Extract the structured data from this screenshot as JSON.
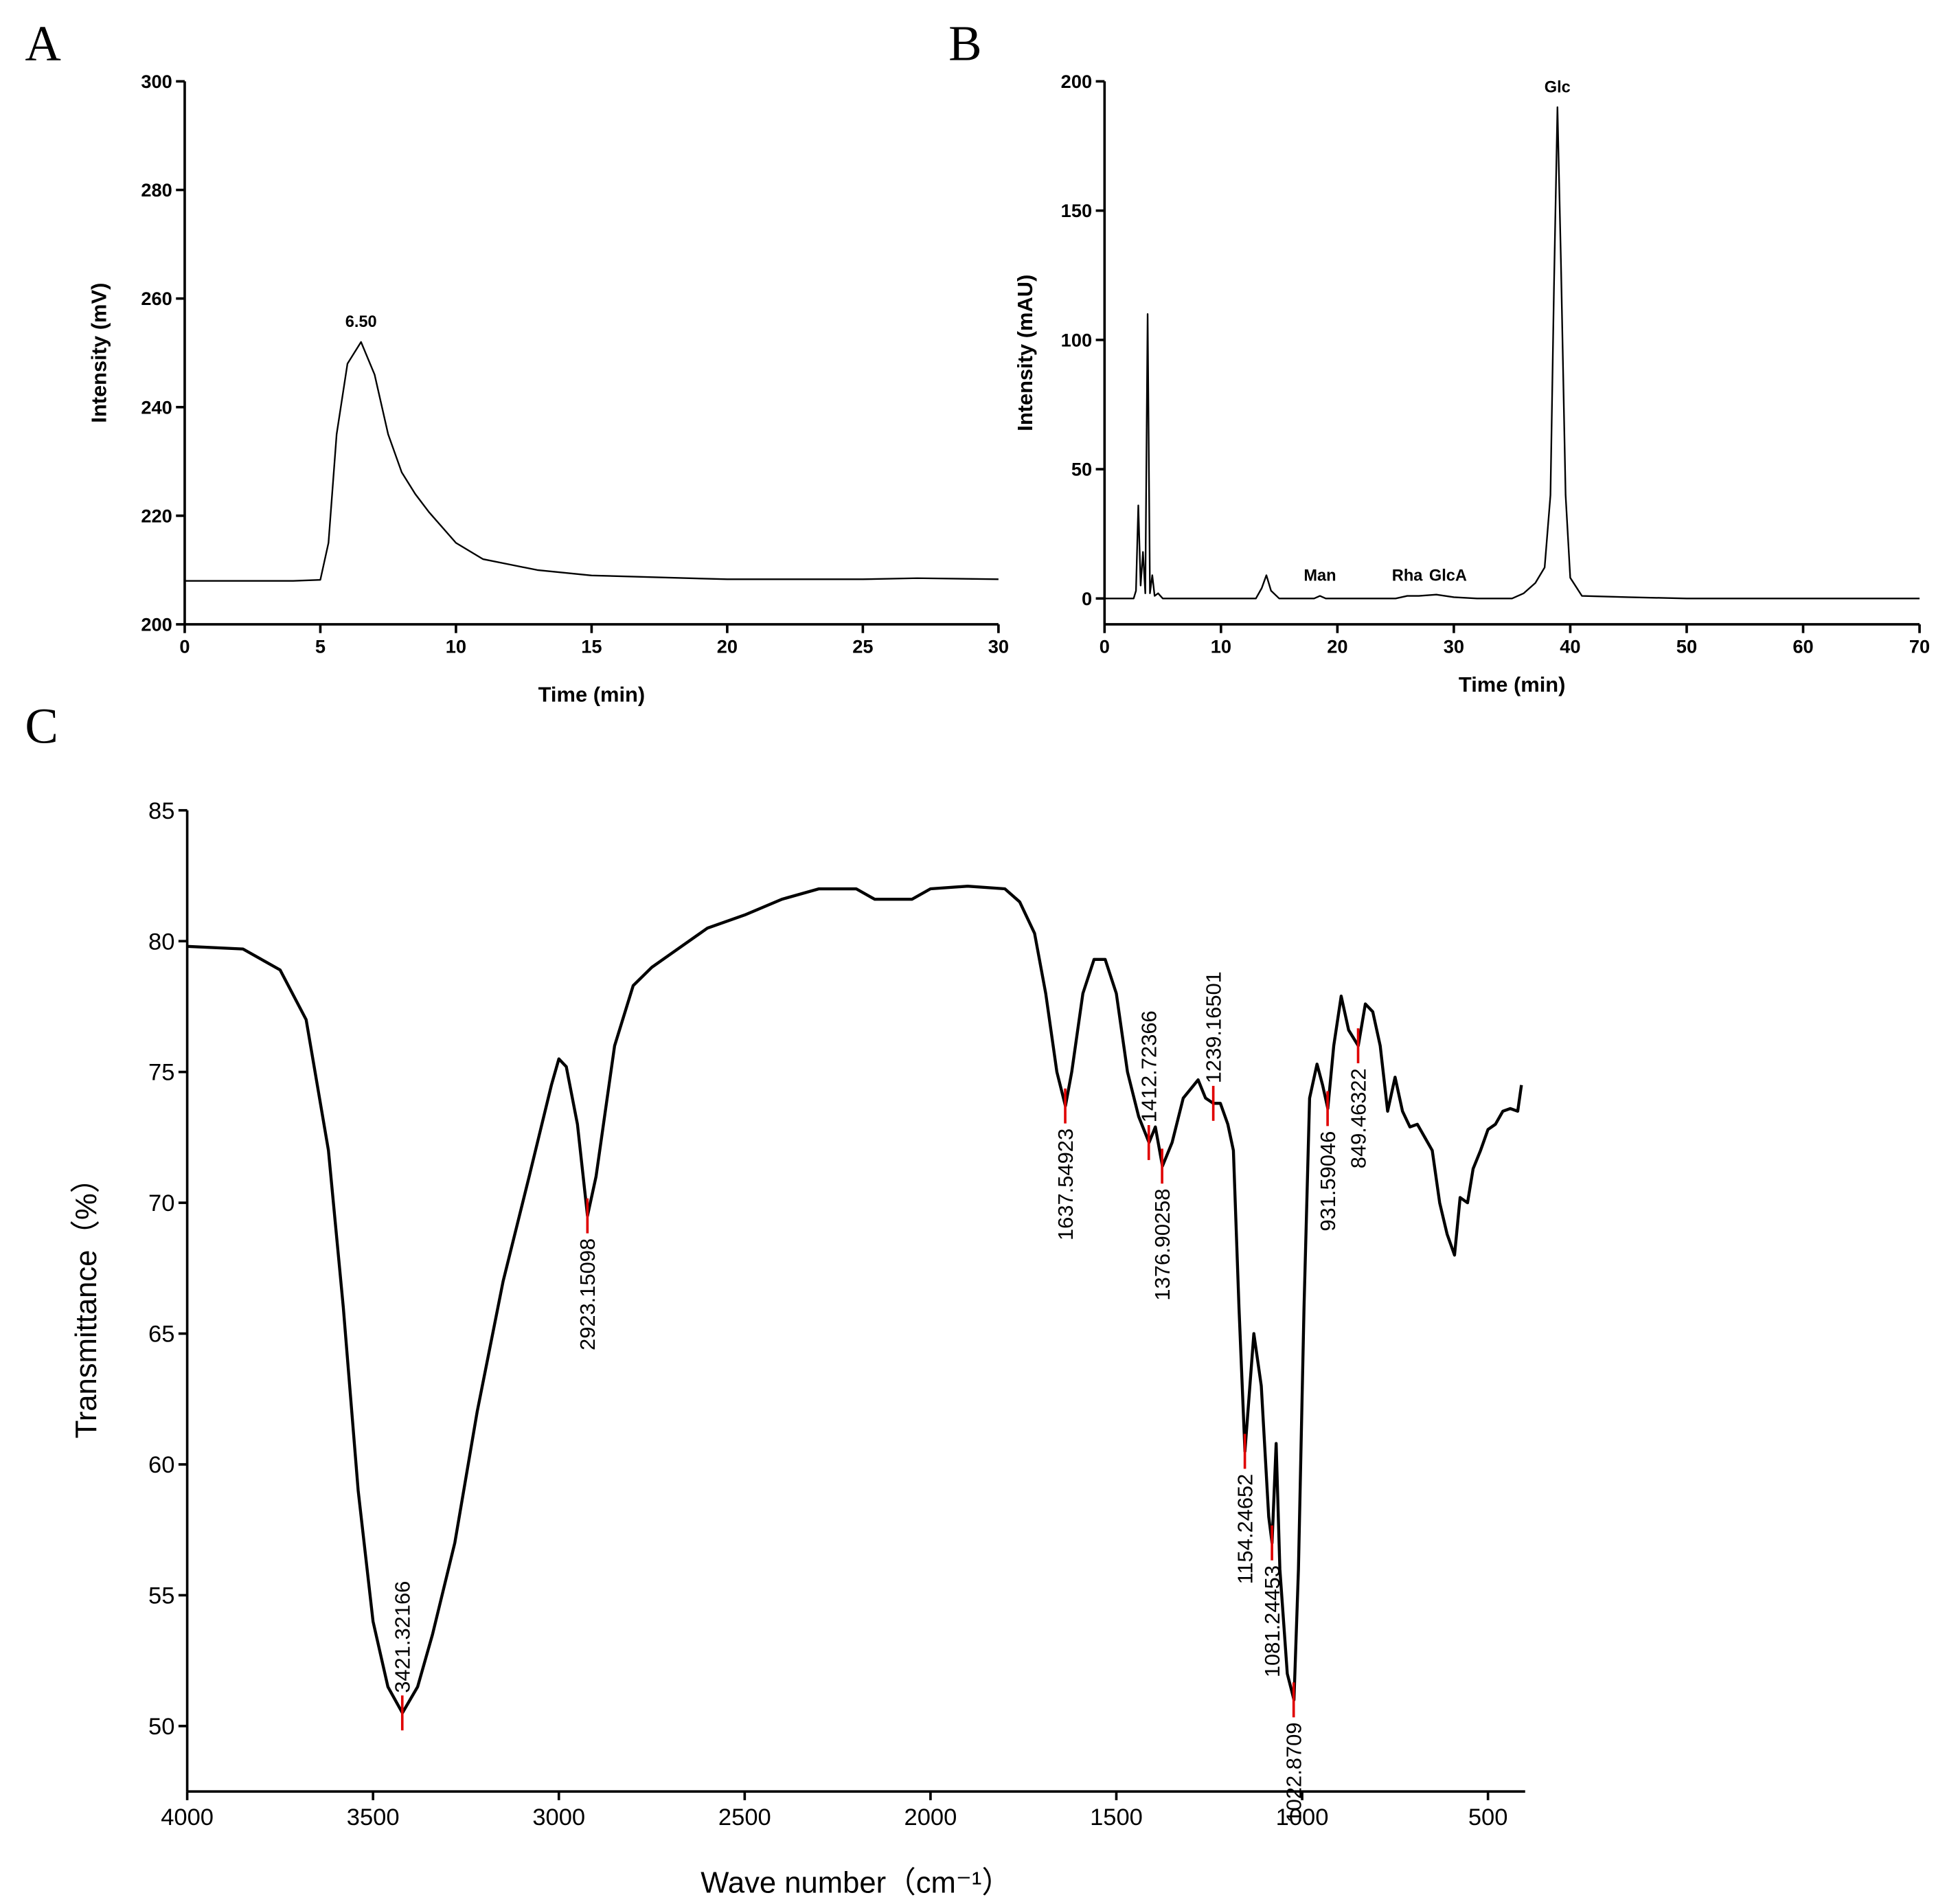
{
  "chart_data": [
    {
      "type": "line",
      "panel": "A",
      "xlabel": "Time (min)",
      "ylabel": "Intensity (mV)",
      "xlim": [
        0,
        30
      ],
      "ylim": [
        200,
        300
      ],
      "xticks": [
        0,
        5,
        10,
        15,
        20,
        25,
        30
      ],
      "yticks": [
        200,
        220,
        240,
        260,
        280,
        300
      ],
      "annotations": [
        {
          "label": "6.50",
          "x": 6.5,
          "y": 252
        }
      ],
      "series": [
        {
          "color": "#000000",
          "x": [
            0,
            2,
            4,
            5,
            5.3,
            5.6,
            6,
            6.5,
            7,
            7.5,
            8,
            8.5,
            9,
            10,
            11,
            12,
            13,
            15,
            20,
            25,
            27,
            30
          ],
          "values": [
            208,
            208,
            208,
            208.2,
            215,
            235,
            248,
            252,
            246,
            235,
            228,
            224,
            220.7,
            215,
            212,
            211,
            210,
            209,
            208.3,
            208.3,
            208.5,
            208.3
          ]
        }
      ]
    },
    {
      "type": "line",
      "panel": "B",
      "xlabel": "Time (min)",
      "ylabel": "Intensity (mAU)",
      "xlim": [
        0,
        70
      ],
      "ylim": [
        -10,
        200
      ],
      "xticks": [
        0,
        10,
        20,
        30,
        40,
        50,
        60,
        70
      ],
      "yticks": [
        0,
        50,
        100,
        150,
        200
      ],
      "annotations": [
        {
          "label": "Man",
          "x": 18.5,
          "y": 1
        },
        {
          "label": "Rha",
          "x": 26,
          "y": 1
        },
        {
          "label": "GlcA",
          "x": 29.5,
          "y": 1
        },
        {
          "label": "Glc",
          "x": 38.9,
          "y": 190
        }
      ],
      "series": [
        {
          "color": "#000000",
          "x": [
            0,
            2.5,
            2.7,
            2.9,
            3.1,
            3.3,
            3.5,
            3.7,
            3.9,
            4.1,
            4.3,
            4.6,
            5,
            13,
            13.5,
            13.9,
            14.3,
            15,
            18,
            18.5,
            19,
            25,
            26,
            27,
            28.5,
            30,
            32,
            35,
            36,
            37,
            37.8,
            38.3,
            38.6,
            38.9,
            39.2,
            39.6,
            40,
            41,
            45,
            50,
            70
          ],
          "values": [
            0,
            0,
            3,
            36,
            5,
            18,
            2,
            110,
            2,
            9,
            1,
            2,
            0,
            0,
            4,
            9,
            3,
            0,
            0,
            1,
            0,
            0,
            1,
            1,
            1.5,
            0.5,
            0,
            0,
            2,
            6,
            12,
            40,
            120,
            190,
            130,
            40,
            8,
            1,
            0.5,
            0,
            0
          ]
        }
      ]
    },
    {
      "type": "line",
      "panel": "C",
      "xlabel": "Wave number（cm⁻¹）",
      "ylabel": "Transmittance（%）",
      "xlim": [
        4000,
        400
      ],
      "ylim": [
        47.5,
        85
      ],
      "xticks": [
        4000,
        3500,
        3000,
        2500,
        2000,
        1500,
        1000,
        500
      ],
      "yticks": [
        50,
        55,
        60,
        65,
        70,
        75,
        80,
        85
      ],
      "peak_color": "#e00000",
      "peaks": [
        {
          "x": 3421.32166,
          "y": 50.5
        },
        {
          "x": 2923.15098,
          "y": 69.5
        },
        {
          "x": 1637.54923,
          "y": 73.7
        },
        {
          "x": 1412.72366,
          "y": 72.3
        },
        {
          "x": 1376.90258,
          "y": 71.4
        },
        {
          "x": 1239.16501,
          "y": 73.8
        },
        {
          "x": 1154.24652,
          "y": 60.5
        },
        {
          "x": 1081.24453,
          "y": 57
        },
        {
          "x": 1022.8709,
          "y": 51
        },
        {
          "x": 931.59046,
          "y": 73.6
        },
        {
          "x": 849.46322,
          "y": 76
        }
      ],
      "series": [
        {
          "color": "#000000",
          "x": [
            4000,
            3850,
            3750,
            3680,
            3620,
            3580,
            3540,
            3500,
            3460,
            3421,
            3380,
            3340,
            3280,
            3220,
            3150,
            3080,
            3020,
            3000,
            2980,
            2950,
            2923,
            2900,
            2880,
            2850,
            2800,
            2750,
            2600,
            2500,
            2400,
            2300,
            2200,
            2150,
            2050,
            2000,
            1900,
            1800,
            1760,
            1720,
            1690,
            1660,
            1637,
            1620,
            1590,
            1560,
            1530,
            1500,
            1470,
            1440,
            1412,
            1395,
            1376,
            1350,
            1320,
            1280,
            1260,
            1239,
            1220,
            1200,
            1185,
            1170,
            1154,
            1130,
            1110,
            1090,
            1081,
            1070,
            1060,
            1040,
            1022,
            1010,
            995,
            980,
            960,
            945,
            931,
            915,
            895,
            875,
            849,
            830,
            810,
            790,
            770,
            750,
            730,
            710,
            690,
            670,
            650,
            630,
            610,
            590,
            575,
            555,
            540,
            520,
            500,
            480,
            460,
            440,
            420,
            410
          ],
          "values": [
            79.8,
            79.7,
            78.9,
            77,
            72,
            66,
            59,
            54,
            51.5,
            50.5,
            51.5,
            53.5,
            57,
            62,
            67,
            71,
            74.5,
            75.5,
            75.2,
            73,
            69.5,
            71,
            73,
            76,
            78.3,
            79,
            80.5,
            81,
            81.6,
            82,
            82,
            81.6,
            81.6,
            82,
            82.1,
            82,
            81.5,
            80.3,
            78,
            75,
            73.7,
            75,
            78,
            79.3,
            79.3,
            78,
            75,
            73.3,
            72.3,
            72.9,
            71.4,
            72.3,
            74,
            74.7,
            74,
            73.8,
            73.8,
            73,
            72,
            66,
            60.5,
            65,
            63,
            58,
            57,
            60.8,
            56,
            52,
            51,
            56,
            66,
            74,
            75.3,
            74.5,
            73.6,
            76,
            77.9,
            76.6,
            76,
            77.6,
            77.3,
            76,
            73.5,
            74.8,
            73.5,
            72.9,
            73,
            72.5,
            72,
            70,
            68.8,
            68,
            70.2,
            70,
            71.3,
            72,
            72.8,
            73,
            73.5,
            73.6,
            73.5,
            74.5
          ]
        }
      ]
    }
  ]
}
